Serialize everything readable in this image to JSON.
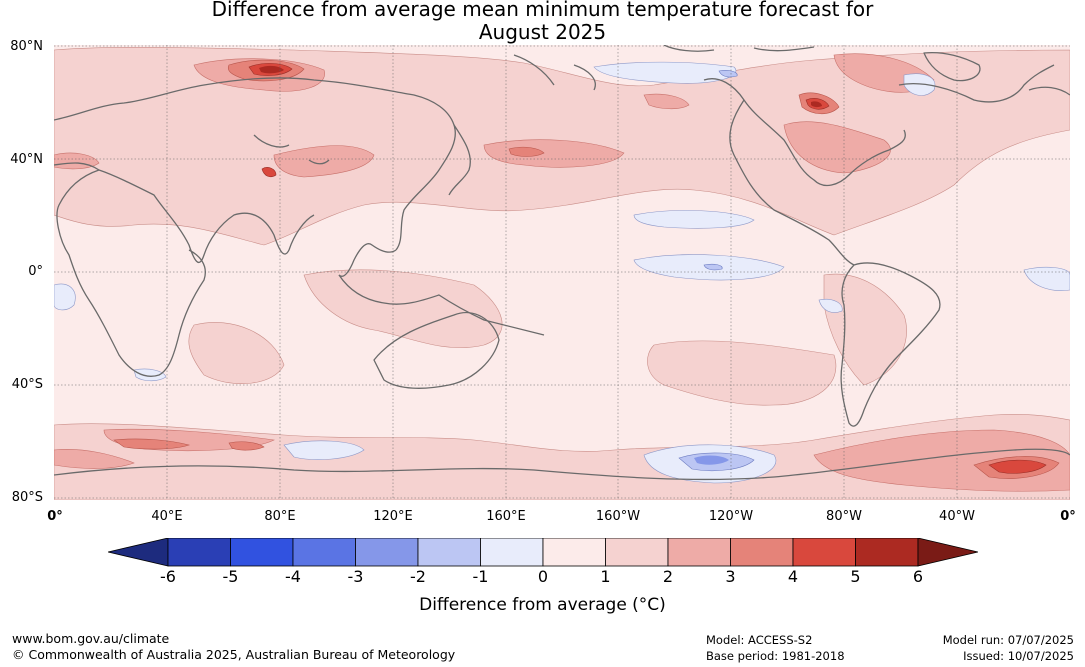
{
  "title_line1": "Difference from average mean minimum temperature forecast for",
  "title_line2": "August 2025",
  "lat_labels": [
    "80°N",
    "40°N",
    "0°",
    "40°S",
    "80°S"
  ],
  "lon_labels": [
    "0°",
    "40°E",
    "80°E",
    "120°E",
    "160°E",
    "160°W",
    "120°W",
    "80°W",
    "40°W",
    "0°"
  ],
  "colorbar": {
    "label": "Difference from average (°C)",
    "ticks": [
      "-6",
      "-5",
      "-4",
      "-3",
      "-2",
      "-1",
      "0",
      "1",
      "2",
      "3",
      "4",
      "5",
      "6"
    ],
    "colors": [
      "#1d2b7e",
      "#2a3fb5",
      "#3152e0",
      "#5a74e4",
      "#8597e9",
      "#bcc6f3",
      "#e8ecfb",
      "#fcebea",
      "#f5d2d0",
      "#eeaba7",
      "#e58379",
      "#d9483d",
      "#ac2a22",
      "#7a1b16"
    ]
  },
  "footer": {
    "url": "www.bom.gov.au/climate",
    "copyright": "© Commonwealth of Australia 2025, Australian Bureau of Meteorology",
    "model": "Model: ACCESS-S2",
    "base_period": "Base period: 1981-2018",
    "model_run": "Model run: 07/07/2025",
    "issued": "Issued: 10/07/2025"
  }
}
